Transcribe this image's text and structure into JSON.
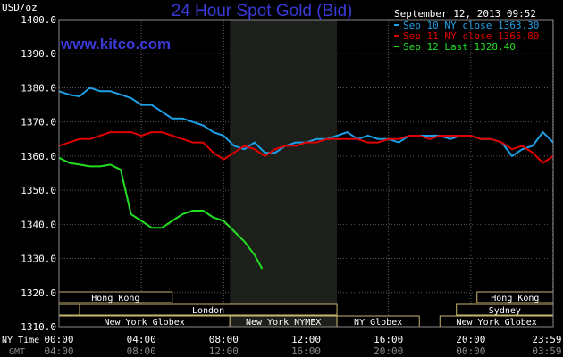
{
  "chart_data": {
    "type": "line",
    "title": "24 Hour Spot Gold (Bid)",
    "watermark": "www.kitco.com",
    "timestamp": "September 12, 2013 09:52",
    "y_unit": "USD/oz",
    "ylim": [
      1310,
      1400
    ],
    "y_ticks": [
      "1400.0",
      "1390.0",
      "1380.0",
      "1370.0",
      "1360.0",
      "1350.0",
      "1340.0",
      "1330.0",
      "1320.0",
      "1310.0"
    ],
    "x_hours": [
      0,
      24
    ],
    "x_ticks_ny": [
      "00:00",
      "04:00",
      "08:00",
      "12:00",
      "16:00",
      "20:00",
      "23:59"
    ],
    "x_ticks_gmt": [
      "04:00",
      "08:00",
      "12:00",
      "16:00",
      "20:00",
      "00:00",
      "03:59"
    ],
    "x_tick_hours": [
      0,
      4,
      8,
      12,
      16,
      20,
      23.98
    ],
    "row_label_ny": "NY Time",
    "row_label_gmt": "GMT",
    "highlight_hours": [
      8.3,
      13.5
    ],
    "series": [
      {
        "name": "Sep 10 NY close 1363.30",
        "color": "#1ea0e8",
        "x": [
          0,
          0.5,
          1,
          1.5,
          2,
          2.5,
          3,
          3.5,
          4,
          4.5,
          5,
          5.5,
          6,
          6.5,
          7,
          7.5,
          8,
          8.5,
          9,
          9.5,
          10,
          10.5,
          11,
          11.5,
          12,
          12.5,
          13,
          13.5,
          14,
          14.5,
          15,
          15.5,
          16,
          16.5,
          17,
          17.5,
          18,
          18.5,
          19,
          19.5,
          20,
          20.5,
          21,
          21.5,
          22,
          22.5,
          23,
          23.5,
          24
        ],
        "values": [
          1379,
          1378,
          1377.5,
          1380,
          1379,
          1379,
          1378,
          1377,
          1375,
          1375,
          1373,
          1371,
          1371,
          1370,
          1369,
          1367,
          1366,
          1363,
          1362,
          1364,
          1361,
          1361,
          1363,
          1364,
          1364,
          1365,
          1365,
          1366,
          1367,
          1365,
          1366,
          1365,
          1365,
          1364,
          1366,
          1366,
          1366,
          1366,
          1365,
          1366,
          1366,
          1365,
          1365,
          1364,
          1360,
          1362,
          1363,
          1367,
          1364
        ]
      },
      {
        "name": "Sep 11 NY close 1365.80",
        "color": "#e00000",
        "x": [
          0,
          0.5,
          1,
          1.5,
          2,
          2.5,
          3,
          3.5,
          4,
          4.5,
          5,
          5.5,
          6,
          6.5,
          7,
          7.5,
          8,
          8.5,
          9,
          9.5,
          10,
          10.5,
          11,
          11.5,
          12,
          12.5,
          13,
          13.5,
          14,
          14.5,
          15,
          15.5,
          16,
          16.5,
          17,
          17.5,
          18,
          18.5,
          19,
          19.5,
          20,
          20.5,
          21,
          21.5,
          22,
          22.5,
          23,
          23.5,
          24
        ],
        "values": [
          1363,
          1364,
          1365,
          1365,
          1366,
          1367,
          1367,
          1367,
          1366,
          1367,
          1367,
          1366,
          1365,
          1364,
          1364,
          1361,
          1359,
          1361,
          1363,
          1362,
          1360,
          1362,
          1363,
          1363,
          1364,
          1364,
          1365,
          1365,
          1365,
          1365,
          1364,
          1364,
          1365,
          1365,
          1366,
          1366,
          1365,
          1366,
          1366,
          1366,
          1366,
          1365,
          1365,
          1364,
          1362,
          1363,
          1361,
          1358,
          1360
        ]
      },
      {
        "name": "Sep 12 Last 1328.40",
        "color": "#20e020",
        "x": [
          0,
          0.5,
          1,
          1.5,
          2,
          2.5,
          3,
          3.5,
          4,
          4.5,
          5,
          5.5,
          6,
          6.5,
          7,
          7.5,
          8,
          8.5,
          9,
          9.5,
          9.87
        ],
        "values": [
          1359.5,
          1358,
          1357.5,
          1357,
          1357,
          1357.5,
          1356,
          1343,
          1341,
          1339,
          1339,
          1341,
          1343,
          1344,
          1344,
          1342,
          1341,
          1338,
          1335,
          1331,
          1327
        ]
      }
    ],
    "sessions": [
      {
        "row": 0,
        "label": "Hong Kong",
        "start": 0,
        "end": 5.5
      },
      {
        "row": 0,
        "label": "Hong Kong",
        "start": 20.3,
        "end": 24
      },
      {
        "row": 1,
        "label": "",
        "start": 0,
        "end": 1
      },
      {
        "row": 1,
        "label": "London",
        "start": 1,
        "end": 13.5
      },
      {
        "row": 1,
        "label": "Sydney",
        "start": 19.3,
        "end": 24
      },
      {
        "row": 2,
        "label": "New York Globex",
        "start": 0,
        "end": 8.3
      },
      {
        "row": 2,
        "label": "New York NYMEX",
        "start": 8.3,
        "end": 13.5
      },
      {
        "row": 2,
        "label": "NY Globex",
        "start": 13.5,
        "end": 17.5
      },
      {
        "row": 2,
        "label": "New York Globex",
        "start": 18.5,
        "end": 24
      }
    ]
  }
}
